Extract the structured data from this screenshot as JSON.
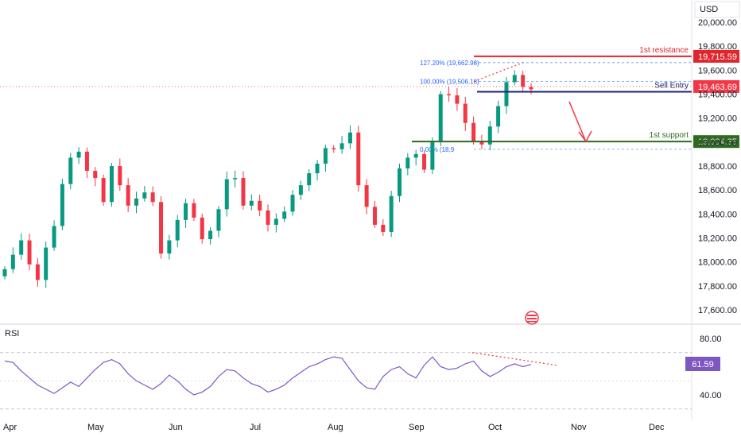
{
  "currency": "USD",
  "chart_data": {
    "type": "candlestick",
    "price_axis": {
      "ticks": [
        17600,
        17800,
        18000,
        18200,
        18400,
        18600,
        18800,
        19000,
        19200,
        19400,
        19600,
        19800,
        20000
      ],
      "labels": [
        "17,600.00",
        "17,800.00",
        "18,000.00",
        "18,200.00",
        "18,400.00",
        "18,600.00",
        "18,800.00",
        "19,000.00",
        "19,200.00",
        "19,400.00",
        "19,600.00",
        "19,800.00",
        "20,000.00"
      ]
    },
    "time_axis": [
      "Apr",
      "May",
      "Jun",
      "Jul",
      "Aug",
      "Sep",
      "Oct",
      "Nov",
      "Dec"
    ],
    "levels": [
      {
        "label": "1st resistance",
        "value": 19715.59,
        "price_label": "19,715.59",
        "color": "#e0252d"
      },
      {
        "label": "Sell Entry",
        "value": 19420,
        "price_label": "",
        "color": "#1a237e"
      },
      {
        "label": "1st support",
        "value": 19004.35,
        "price_label": "19,004.35",
        "color": "#2e6b1f"
      }
    ],
    "current_price": {
      "value": 19463.69,
      "label": "19,463.69",
      "color": "#f23645"
    },
    "fib_levels": [
      {
        "label": "127.20% (19,662.98)",
        "value": 19662.98
      },
      {
        "label": "100.00% (19,506.18)",
        "value": 19506.18
      },
      {
        "label": "0.00% (18,9",
        "value": 18940
      }
    ],
    "close_path": [
      17940,
      18060,
      18180,
      17980,
      17850,
      18120,
      18300,
      18650,
      18870,
      18920,
      18760,
      18700,
      18500,
      18800,
      18640,
      18470,
      18530,
      18580,
      18500,
      18070,
      18180,
      18350,
      18490,
      18370,
      18190,
      18260,
      18440,
      18690,
      18700,
      18470,
      18510,
      18430,
      18310,
      18360,
      18420,
      18560,
      18640,
      18740,
      18820,
      18950,
      18940,
      18990,
      19080,
      18640,
      18460,
      18310,
      18250,
      18550,
      18780,
      18870,
      18900,
      18770,
      19010,
      19400,
      19390,
      19320,
      19160,
      19010,
      18980,
      19130,
      19300,
      19500,
      19560,
      19460,
      19440
    ],
    "rsi": {
      "label": "RSI",
      "value": 61.59,
      "value_label": "61.59",
      "axis_labels": [
        "80.00",
        "40.00"
      ],
      "upper": 70,
      "lower": 30,
      "series": [
        64,
        63,
        57,
        52,
        47,
        44,
        41,
        45,
        49,
        46,
        52,
        58,
        63,
        65,
        62,
        55,
        50,
        47,
        44,
        48,
        54,
        50,
        44,
        40,
        42,
        46,
        53,
        58,
        57,
        52,
        48,
        46,
        42,
        44,
        47,
        52,
        56,
        60,
        62,
        65,
        67,
        66,
        58,
        50,
        45,
        44,
        53,
        58,
        60,
        55,
        52,
        61,
        67,
        60,
        58,
        59,
        62,
        64,
        57,
        53,
        56,
        60,
        62,
        60,
        61.59
      ]
    }
  }
}
